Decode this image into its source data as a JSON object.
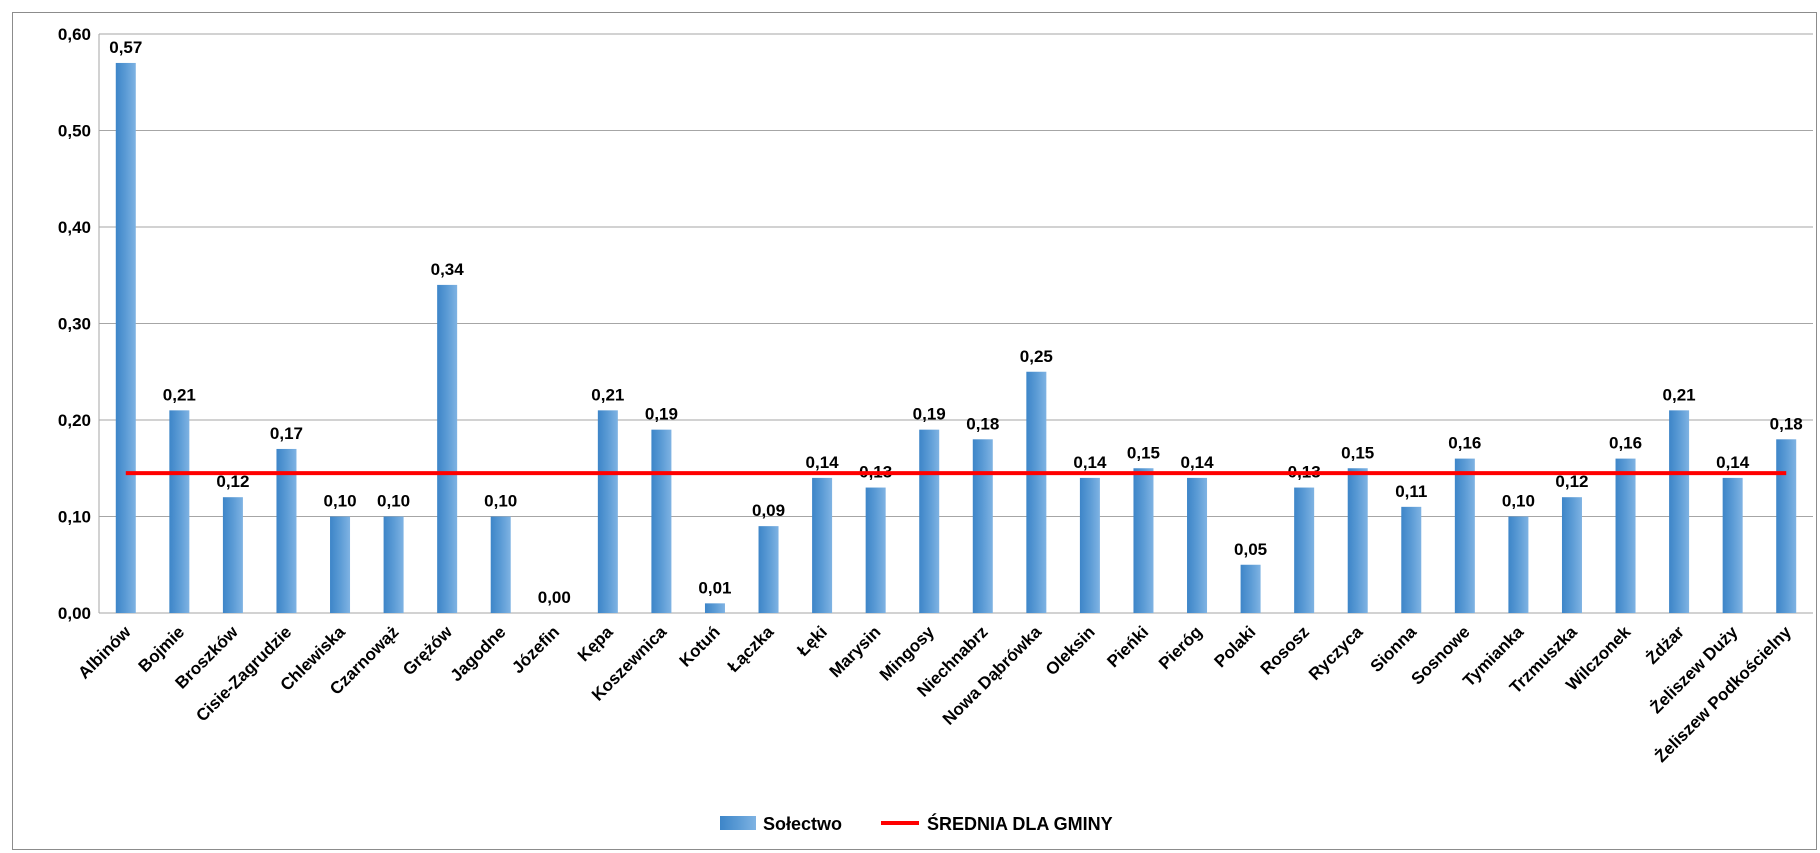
{
  "chart_data": {
    "type": "bar",
    "categories": [
      "Albinów",
      "Bojmie",
      "Broszków",
      "Cisie-Zagrudzie",
      "Chlewiska",
      "Czarnowąż",
      "Grężów",
      "Jagodne",
      "Józefin",
      "Kępa",
      "Koszewnica",
      "Kotuń",
      "Łączka",
      "Łęki",
      "Marysin",
      "Mingosy",
      "Niechnabrz",
      "Nowa Dąbrówka",
      "Oleksin",
      "Pieńki",
      "Pieróg",
      "Polaki",
      "Rososz",
      "Ryczyca",
      "Sionna",
      "Sosnowe",
      "Tymianka",
      "Trzmuszka",
      "Wilczonek",
      "Żdżar",
      "Żeliszew Duży",
      "Żeliszew Podkościelny"
    ],
    "series": [
      {
        "name": "Sołectwo",
        "type": "bar",
        "color": "#5b9bd5",
        "values": [
          0.57,
          0.21,
          0.12,
          0.17,
          0.1,
          0.1,
          0.34,
          0.1,
          0.0,
          0.21,
          0.19,
          0.01,
          0.09,
          0.14,
          0.13,
          0.19,
          0.18,
          0.25,
          0.14,
          0.15,
          0.14,
          0.05,
          0.13,
          0.15,
          0.11,
          0.16,
          0.1,
          0.12,
          0.16,
          0.21,
          0.14,
          0.18
        ],
        "labels": [
          "0,57",
          "0,21",
          "0,12",
          "0,17",
          "0,10",
          "0,10",
          "0,34",
          "0,10",
          "0,00",
          "0,21",
          "0,19",
          "0,01",
          "0,09",
          "0,14",
          "0,13",
          "0,19",
          "0,18",
          "0,25",
          "0,14",
          "0,15",
          "0,14",
          "0,05",
          "0,13",
          "0,15",
          "0,11",
          "0,16",
          "0,10",
          "0,12",
          "0,16",
          "0,21",
          "0,14",
          "0,18"
        ]
      },
      {
        "name": "ŚREDNIA DLA GMINY",
        "type": "line",
        "color": "#ff0000",
        "value": 0.145
      }
    ],
    "ylim": [
      0,
      0.6
    ],
    "yticks": [
      0,
      0.1,
      0.2,
      0.3,
      0.4,
      0.5,
      0.6
    ],
    "ytick_labels": [
      "0,00",
      "0,10",
      "0,20",
      "0,30",
      "0,40",
      "0,50",
      "0,60"
    ],
    "grid": true,
    "legend": "bottom",
    "title": "",
    "xlabel": "",
    "ylabel": ""
  }
}
